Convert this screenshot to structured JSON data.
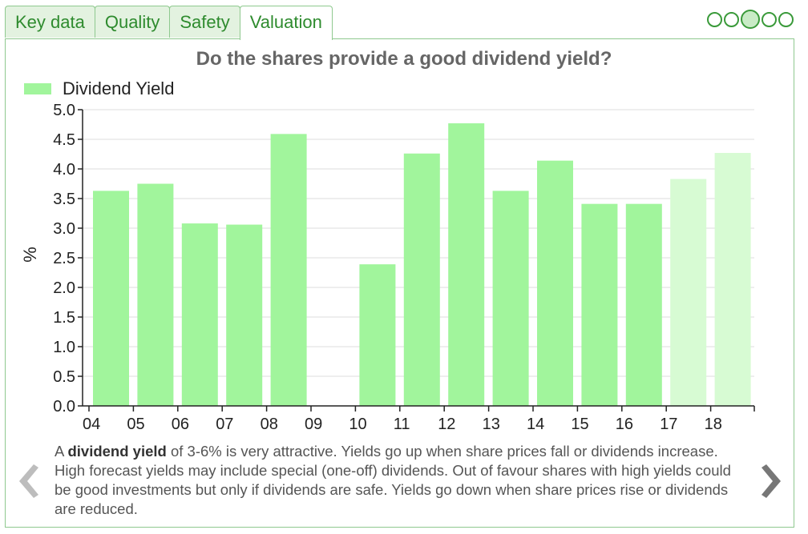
{
  "tabs": [
    {
      "label": "Key data",
      "active": false
    },
    {
      "label": "Quality",
      "active": false
    },
    {
      "label": "Safety",
      "active": false
    },
    {
      "label": "Valuation",
      "active": true
    }
  ],
  "pager": {
    "count": 5,
    "active_index": 2
  },
  "description": {
    "prefix": "A ",
    "bold": "dividend yield",
    "rest": " of 3-6% is very attractive. Yields go up when share prices fall or dividends increase. High forecast yields may include special (one-off) dividends. Out of favour shares with high yields could be good investments but only if dividends are safe. Yields go down when share prices rise or dividends are reduced."
  },
  "colors": {
    "bar": "#a1f59c",
    "forecast_bar": "#d7fbd3",
    "accent": "#2e8b2e"
  },
  "icons": {
    "prev": "chevron-left-icon",
    "next": "chevron-right-icon"
  },
  "chart_data": {
    "type": "bar",
    "title": "Do the shares provide a good dividend yield?",
    "ylabel": "%",
    "xlabel": "",
    "ylim": [
      0,
      5
    ],
    "yticks": [
      "0.0",
      "0.5",
      "1.0",
      "1.5",
      "2.0",
      "2.5",
      "3.0",
      "3.5",
      "4.0",
      "4.5",
      "5.0"
    ],
    "categories": [
      "04",
      "05",
      "06",
      "07",
      "08",
      "09",
      "10",
      "11",
      "12",
      "13",
      "14",
      "15",
      "16",
      "17",
      "18"
    ],
    "series": [
      {
        "name": "Dividend Yield",
        "values": [
          3.63,
          3.75,
          3.08,
          3.06,
          4.59,
          null,
          2.39,
          4.26,
          4.77,
          3.63,
          4.14,
          3.41,
          3.41,
          3.83,
          4.27
        ],
        "forecast": [
          false,
          false,
          false,
          false,
          false,
          false,
          false,
          false,
          false,
          false,
          false,
          false,
          false,
          true,
          true
        ]
      }
    ],
    "grid": true,
    "legend": "top-left"
  }
}
